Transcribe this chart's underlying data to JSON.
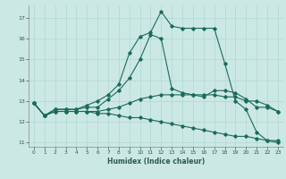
{
  "xlabel": "Humidex (Indice chaleur)",
  "bg_color": "#cce8e4",
  "line_color": "#1a6b5a",
  "grid_color": "#b0d8d0",
  "xlim": [
    -0.5,
    23.5
  ],
  "ylim": [
    10.8,
    17.6
  ],
  "yticks": [
    11,
    12,
    13,
    14,
    15,
    16,
    17
  ],
  "xticks": [
    0,
    1,
    2,
    3,
    4,
    5,
    6,
    7,
    8,
    9,
    10,
    11,
    12,
    13,
    14,
    15,
    16,
    17,
    18,
    19,
    20,
    21,
    22,
    23
  ],
  "lines": [
    {
      "x": [
        0,
        1,
        2,
        3,
        4,
        5,
        6,
        7,
        8,
        9,
        10,
        11,
        12,
        13,
        14,
        15,
        16,
        17,
        18,
        19,
        20,
        21,
        22,
        23
      ],
      "y": [
        12.9,
        12.3,
        12.6,
        12.6,
        12.6,
        12.8,
        13.0,
        13.3,
        13.8,
        15.3,
        16.1,
        16.3,
        17.3,
        16.6,
        16.5,
        16.5,
        16.5,
        16.5,
        14.8,
        13.0,
        12.6,
        11.5,
        11.1,
        11.1
      ]
    },
    {
      "x": [
        0,
        1,
        2,
        3,
        4,
        5,
        6,
        7,
        8,
        9,
        10,
        11,
        12,
        13,
        14,
        15,
        16,
        17,
        18,
        19,
        20,
        21,
        22,
        23
      ],
      "y": [
        12.9,
        12.3,
        12.6,
        12.6,
        12.6,
        12.7,
        12.7,
        13.1,
        13.5,
        14.1,
        15.0,
        16.2,
        16.0,
        13.6,
        13.4,
        13.3,
        13.2,
        13.5,
        13.5,
        13.4,
        13.1,
        12.7,
        12.7,
        12.5
      ]
    },
    {
      "x": [
        0,
        1,
        2,
        3,
        4,
        5,
        6,
        7,
        8,
        9,
        10,
        11,
        12,
        13,
        14,
        15,
        16,
        17,
        18,
        19,
        20,
        21,
        22,
        23
      ],
      "y": [
        12.9,
        12.3,
        12.5,
        12.5,
        12.5,
        12.5,
        12.4,
        12.4,
        12.3,
        12.2,
        12.2,
        12.1,
        12.0,
        11.9,
        11.8,
        11.7,
        11.6,
        11.5,
        11.4,
        11.3,
        11.3,
        11.2,
        11.1,
        11.0
      ]
    },
    {
      "x": [
        0,
        1,
        2,
        3,
        4,
        5,
        6,
        7,
        8,
        9,
        10,
        11,
        12,
        13,
        14,
        15,
        16,
        17,
        18,
        19,
        20,
        21,
        22,
        23
      ],
      "y": [
        12.9,
        12.3,
        12.5,
        12.5,
        12.5,
        12.5,
        12.5,
        12.6,
        12.7,
        12.9,
        13.1,
        13.2,
        13.3,
        13.3,
        13.3,
        13.3,
        13.3,
        13.3,
        13.2,
        13.2,
        13.0,
        13.0,
        12.8,
        12.5
      ]
    }
  ]
}
